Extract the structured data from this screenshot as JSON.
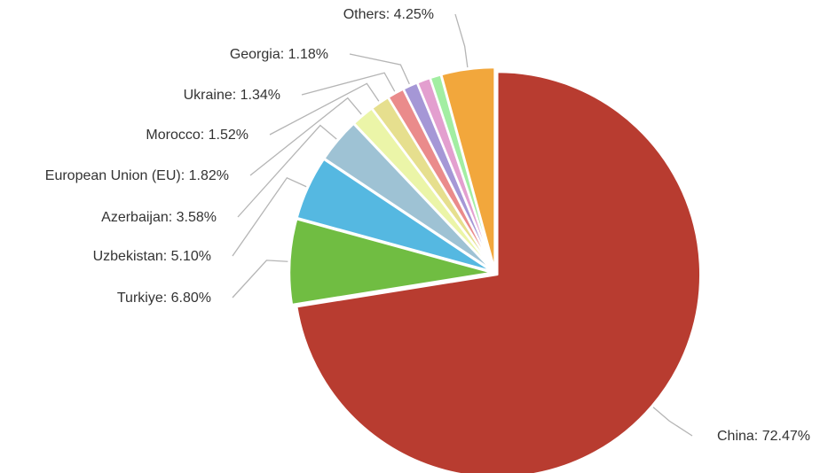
{
  "chart_data": {
    "type": "pie",
    "start_angle_deg": 0,
    "direction": "clockwise",
    "slices": [
      {
        "label": "China",
        "value": 72.47,
        "display": "China: 72.47%",
        "color": "#b83c30"
      },
      {
        "label": "Turkiye",
        "value": 6.8,
        "display": "Turkiye: 6.80%",
        "color": "#70bd42"
      },
      {
        "label": "Uzbekistan",
        "value": 5.1,
        "display": "Uzbekistan: 5.10%",
        "color": "#55b8e1"
      },
      {
        "label": "Azerbaijan",
        "value": 3.58,
        "display": "Azerbaijan: 3.58%",
        "color": "#9ec2d4"
      },
      {
        "label": "European Union (EU)",
        "value": 1.82,
        "display": "European Union (EU): 1.82%",
        "color": "#ebf5a8"
      },
      {
        "label": "Morocco",
        "value": 1.52,
        "display": "Morocco: 1.52%",
        "color": "#e6df8e"
      },
      {
        "label": "Ukraine",
        "value": 1.34,
        "display": "Ukraine: 1.34%",
        "color": "#ea8b8b"
      },
      {
        "label": "Georgia",
        "value": 1.18,
        "display": "Georgia: 1.18%",
        "color": "#a597d6"
      },
      {
        "label": "",
        "value": 1.06,
        "display": "",
        "color": "#e39fcf"
      },
      {
        "label": "",
        "value": 0.88,
        "display": "",
        "color": "#a2eea2"
      },
      {
        "label": "Others",
        "value": 4.25,
        "display": "Others: 4.25%",
        "color": "#f2a73c"
      }
    ]
  }
}
